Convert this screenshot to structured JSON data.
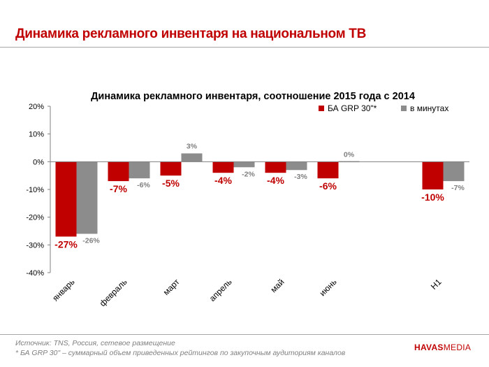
{
  "slide": {
    "title": "Динамика рекламного инвентаря на национальном ТВ",
    "source": "Источник: TNS, Россия, сетевое размещение",
    "note": "* БА GRP 30\" – суммарный объем приведенных рейтингов по закупочным аудиториям каналов",
    "logo_primary": "HAVAS",
    "logo_secondary": "MEDIA"
  },
  "colors": {
    "red": "#c00000",
    "gray": "#8c8c8c",
    "title": "#c00000"
  },
  "chart_data": {
    "type": "bar",
    "title": "Динамика рекламного инвентаря, соотношение 2015 года с 2014",
    "xlabel": "",
    "ylabel": "",
    "ylim": [
      -40,
      20
    ],
    "yticks": [
      "20%",
      "10%",
      "0%",
      "-10%",
      "-20%",
      "-30%",
      "-40%"
    ],
    "yticks_values": [
      20,
      10,
      0,
      -10,
      -20,
      -30,
      -40
    ],
    "categories": [
      "январь",
      "февраль",
      "март",
      "апрель",
      "май",
      "июнь",
      "",
      "H1"
    ],
    "legend_position": "top-right",
    "series": [
      {
        "name": "БА GRP 30\"*",
        "color": "#c00000",
        "values": [
          -27,
          -7,
          -5,
          -4,
          -4,
          -6,
          null,
          -10
        ],
        "labels": [
          "-27%",
          "-7%",
          "-5%",
          "-4%",
          "-4%",
          "-6%",
          "",
          "-10%"
        ]
      },
      {
        "name": "в минутах",
        "color": "#8c8c8c",
        "values": [
          -26,
          -6,
          3,
          -2,
          -3,
          0,
          null,
          -7
        ],
        "labels": [
          "-26%",
          "-6%",
          "3%",
          "-2%",
          "-3%",
          "0%",
          "",
          "-7%"
        ]
      }
    ]
  }
}
